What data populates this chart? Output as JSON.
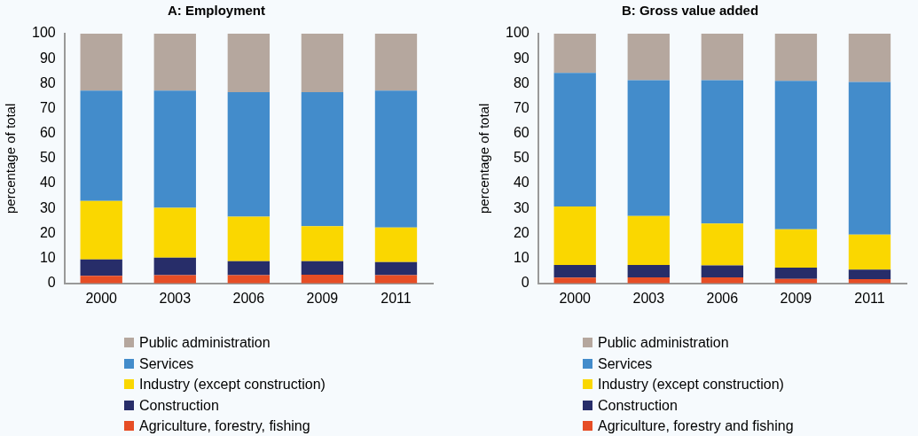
{
  "chart_data": [
    {
      "type": "bar",
      "title": "A: Employment",
      "ylabel": "percentage of total",
      "categories": [
        "2000",
        "2003",
        "2006",
        "2009",
        "2011"
      ],
      "stacked": true,
      "ylim": [
        0,
        100
      ],
      "yticks": [
        0,
        10,
        20,
        30,
        40,
        50,
        60,
        70,
        80,
        90,
        100
      ],
      "grid": false,
      "legend": "bottom",
      "series": [
        {
          "name": "Agriculture, forestry, fishing",
          "color": "#e64d25",
          "values": [
            3.0,
            3.3,
            3.3,
            3.5,
            3.3
          ]
        },
        {
          "name": "Construction",
          "color": "#272d69",
          "values": [
            6.6,
            7.0,
            5.6,
            5.4,
            5.2
          ]
        },
        {
          "name": "Industry (except construction)",
          "color": "#fad700",
          "values": [
            23.4,
            20.0,
            17.8,
            14.0,
            13.9
          ]
        },
        {
          "name": "Services",
          "color": "#438ccb",
          "values": [
            44.2,
            46.9,
            49.9,
            53.7,
            54.8
          ]
        },
        {
          "name": "Public administration",
          "color": "#b5a79e",
          "values": [
            22.8,
            22.8,
            23.4,
            23.4,
            22.8
          ]
        }
      ]
    },
    {
      "type": "bar",
      "title": "B: Gross value added",
      "ylabel": "percentage of total",
      "categories": [
        "2000",
        "2003",
        "2006",
        "2009",
        "2011"
      ],
      "stacked": true,
      "ylim": [
        0,
        100
      ],
      "yticks": [
        0,
        10,
        20,
        30,
        40,
        50,
        60,
        70,
        80,
        90,
        100
      ],
      "grid": false,
      "legend": "bottom",
      "series": [
        {
          "name": "Agriculture, forestry and fishing",
          "color": "#e64d25",
          "values": [
            2.3,
            2.4,
            2.4,
            1.8,
            1.7
          ]
        },
        {
          "name": "Construction",
          "color": "#272d69",
          "values": [
            5.1,
            5.0,
            4.8,
            4.5,
            3.8
          ]
        },
        {
          "name": "Industry (except construction)",
          "color": "#fad700",
          "values": [
            23.4,
            19.6,
            16.8,
            15.4,
            14.0
          ]
        },
        {
          "name": "Services",
          "color": "#438ccb",
          "values": [
            53.5,
            54.4,
            57.4,
            59.4,
            61.2
          ]
        },
        {
          "name": "Public administration",
          "color": "#b5a79e",
          "values": [
            15.7,
            18.6,
            18.6,
            18.9,
            19.3
          ]
        }
      ]
    }
  ]
}
